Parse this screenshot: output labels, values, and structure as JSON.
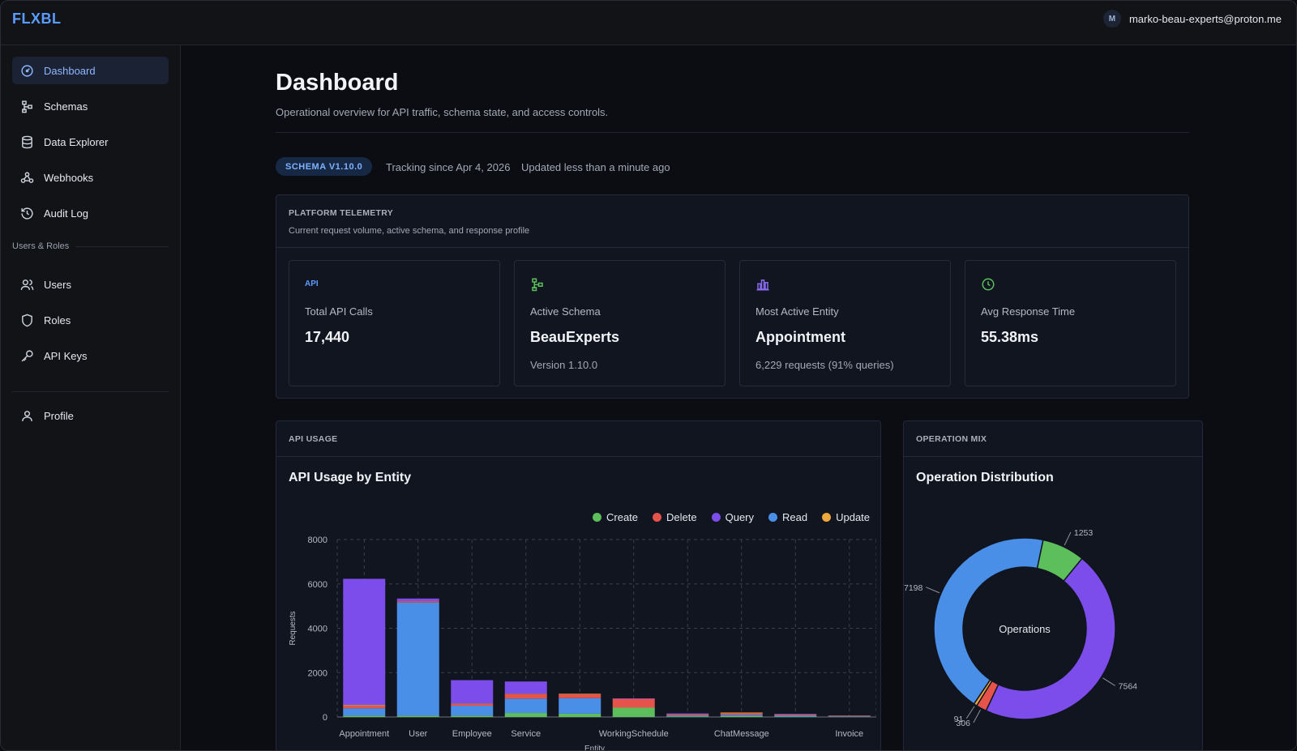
{
  "app": {
    "logo": "FLXBL",
    "avatar_initial": "M",
    "user_email": "marko-beau-experts@proton.me"
  },
  "sidebar": {
    "items": [
      {
        "label": "Dashboard",
        "icon": "dashboard-icon",
        "active": true
      },
      {
        "label": "Schemas",
        "icon": "schema-icon"
      },
      {
        "label": "Data Explorer",
        "icon": "database-icon"
      },
      {
        "label": "Webhooks",
        "icon": "webhook-icon"
      },
      {
        "label": "Audit Log",
        "icon": "history-icon"
      }
    ],
    "section_label": "Users & Roles",
    "users_items": [
      {
        "label": "Users",
        "icon": "users-icon"
      },
      {
        "label": "Roles",
        "icon": "shield-icon"
      },
      {
        "label": "API Keys",
        "icon": "key-icon"
      }
    ],
    "profile": {
      "label": "Profile",
      "icon": "user-icon"
    }
  },
  "page": {
    "title": "Dashboard",
    "subtitle": "Operational overview for API traffic, schema state, and access controls.",
    "schema_badge": "SCHEMA V1.10.0",
    "tracking": "Tracking since Apr 4, 2026",
    "updated": "Updated less than a minute ago"
  },
  "telemetry": {
    "kicker": "PLATFORM TELEMETRY",
    "description": "Current request volume, active schema, and response profile",
    "cards": [
      {
        "icon_text": "API",
        "label": "Total API Calls",
        "value": "17,440",
        "sub": ""
      },
      {
        "label": "Active Schema",
        "value": "BeauExperts",
        "sub": "Version 1.10.0"
      },
      {
        "label": "Most Active Entity",
        "value": "Appointment",
        "sub": "6,229 requests (91% queries)"
      },
      {
        "label": "Avg Response Time",
        "value": "55.38ms",
        "sub": ""
      }
    ]
  },
  "api_usage": {
    "kicker": "API USAGE",
    "title": "API Usage by Entity"
  },
  "operation_mix": {
    "kicker": "OPERATION MIX",
    "title": "Operation Distribution",
    "center_label": "Operations"
  },
  "colors": {
    "create": "#5cbf5c",
    "delete": "#e5534b",
    "query": "#7c4dea",
    "read": "#4a8fe7",
    "update": "#f0a83c",
    "accent": "#5b9dff"
  },
  "chart_data": [
    {
      "type": "bar",
      "stacked": true,
      "title": "API Usage by Entity",
      "xlabel": "Entity",
      "ylabel": "Requests",
      "ylim": [
        0,
        8000
      ],
      "yticks": [
        0,
        2000,
        4000,
        6000,
        8000
      ],
      "categories": [
        "Appointment",
        "User",
        "Employee",
        "Service",
        "",
        "WorkingSchedule",
        "",
        "ChatMessage",
        "",
        "Invoice"
      ],
      "series": [
        {
          "name": "Create",
          "color": "#5cbf5c",
          "values": [
            60,
            60,
            60,
            180,
            150,
            420,
            30,
            40,
            20,
            10
          ]
        },
        {
          "name": "Read",
          "color": "#4a8fe7",
          "values": [
            330,
            5100,
            450,
            650,
            700,
            0,
            40,
            60,
            50,
            20
          ]
        },
        {
          "name": "Delete",
          "color": "#e5534b",
          "values": [
            110,
            50,
            80,
            200,
            180,
            400,
            50,
            70,
            40,
            20
          ]
        },
        {
          "name": "Update",
          "color": "#f0a83c",
          "values": [
            40,
            10,
            20,
            20,
            20,
            0,
            10,
            30,
            10,
            10
          ]
        },
        {
          "name": "Query",
          "color": "#7c4dea",
          "values": [
            5690,
            120,
            1050,
            550,
            0,
            20,
            30,
            0,
            20,
            10
          ]
        }
      ],
      "legend_position": "top-right",
      "grid": true
    },
    {
      "type": "pie",
      "donut": true,
      "title": "Operation Distribution",
      "center_label": "Operations",
      "slices": [
        {
          "name": "Read",
          "value": 7198,
          "color": "#4a8fe7"
        },
        {
          "name": "Create",
          "value": 1253,
          "color": "#5cbf5c"
        },
        {
          "name": "Query",
          "value": 7564,
          "color": "#7c4dea"
        },
        {
          "name": "Delete",
          "value": 306,
          "color": "#e5534b"
        },
        {
          "name": "Update",
          "value": 91,
          "color": "#f0a83c"
        }
      ],
      "slice_labels": [
        "7198",
        "1253",
        "7564",
        "306",
        "91"
      ]
    }
  ]
}
